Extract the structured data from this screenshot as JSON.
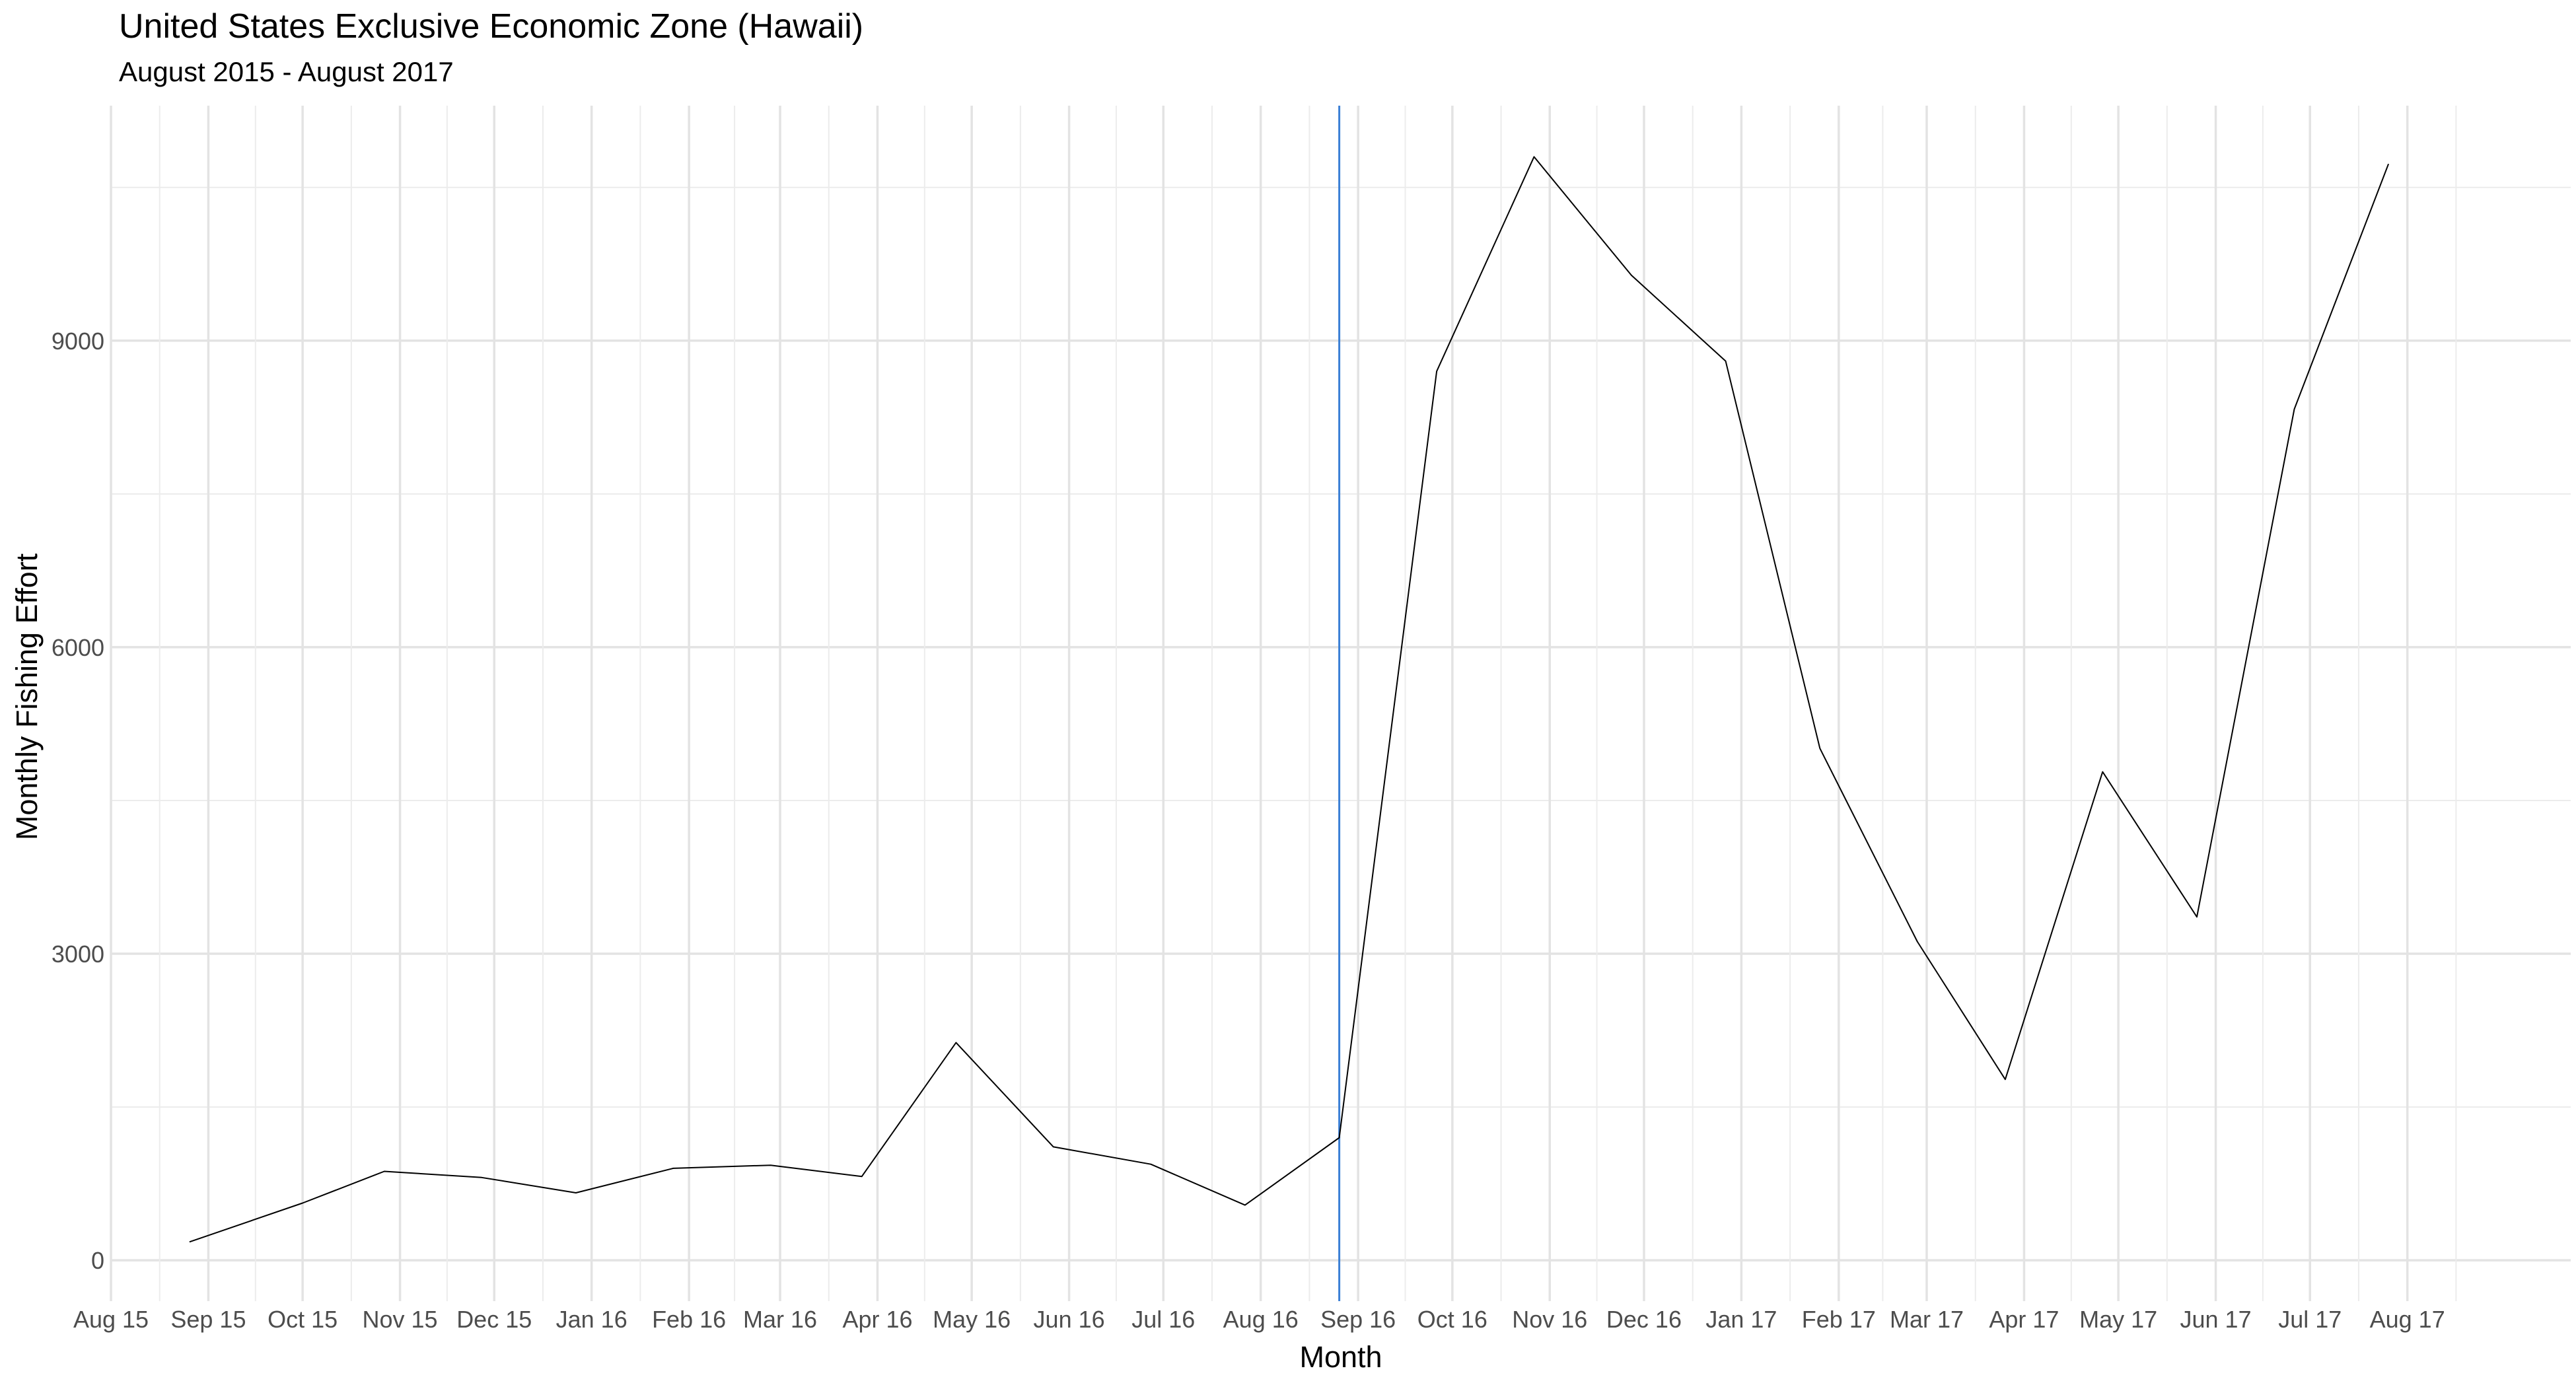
{
  "chart_data": {
    "type": "line",
    "title": "United States Exclusive Economic Zone (Hawaii)",
    "subtitle": "August 2015 - August 2017",
    "xlabel": "Month",
    "ylabel": "Monthly Fishing Effort",
    "x_range": [
      "2015-08-01",
      "2017-09-22"
    ],
    "ylim": [
      -400,
      11300
    ],
    "y_ticks": [
      0,
      3000,
      6000,
      9000
    ],
    "y_minor_ticks": [
      1500,
      4500,
      7500,
      10500
    ],
    "x_ticks": [
      {
        "date": "2015-08-01",
        "label": "Aug 15"
      },
      {
        "date": "2015-09-01",
        "label": "Sep 15"
      },
      {
        "date": "2015-10-01",
        "label": "Oct 15"
      },
      {
        "date": "2015-11-01",
        "label": "Nov 15"
      },
      {
        "date": "2015-12-01",
        "label": "Dec 15"
      },
      {
        "date": "2016-01-01",
        "label": "Jan 16"
      },
      {
        "date": "2016-02-01",
        "label": "Feb 16"
      },
      {
        "date": "2016-03-01",
        "label": "Mar 16"
      },
      {
        "date": "2016-04-01",
        "label": "Apr 16"
      },
      {
        "date": "2016-05-01",
        "label": "May 16"
      },
      {
        "date": "2016-06-01",
        "label": "Jun 16"
      },
      {
        "date": "2016-07-01",
        "label": "Jul 16"
      },
      {
        "date": "2016-08-01",
        "label": "Aug 16"
      },
      {
        "date": "2016-09-01",
        "label": "Sep 16"
      },
      {
        "date": "2016-10-01",
        "label": "Oct 16"
      },
      {
        "date": "2016-11-01",
        "label": "Nov 16"
      },
      {
        "date": "2016-12-01",
        "label": "Dec 16"
      },
      {
        "date": "2017-01-01",
        "label": "Jan 17"
      },
      {
        "date": "2017-02-01",
        "label": "Feb 17"
      },
      {
        "date": "2017-03-01",
        "label": "Mar 17"
      },
      {
        "date": "2017-04-01",
        "label": "Apr 17"
      },
      {
        "date": "2017-05-01",
        "label": "May 17"
      },
      {
        "date": "2017-06-01",
        "label": "Jun 17"
      },
      {
        "date": "2017-07-01",
        "label": "Jul 17"
      },
      {
        "date": "2017-08-01",
        "label": "Aug 17"
      }
    ],
    "series": [
      {
        "color": "#000000",
        "points": [
          {
            "date": "2015-08-26",
            "value": 180
          },
          {
            "date": "2015-10-01",
            "value": 560
          },
          {
            "date": "2015-10-27",
            "value": 870
          },
          {
            "date": "2015-11-27",
            "value": 810
          },
          {
            "date": "2015-12-27",
            "value": 660
          },
          {
            "date": "2016-01-27",
            "value": 900
          },
          {
            "date": "2016-02-27",
            "value": 930
          },
          {
            "date": "2016-03-27",
            "value": 820
          },
          {
            "date": "2016-04-26",
            "value": 2130
          },
          {
            "date": "2016-05-27",
            "value": 1110
          },
          {
            "date": "2016-06-27",
            "value": 940
          },
          {
            "date": "2016-07-27",
            "value": 540
          },
          {
            "date": "2016-08-26",
            "value": 1200
          },
          {
            "date": "2016-09-26",
            "value": 8700
          },
          {
            "date": "2016-10-27",
            "value": 10800
          },
          {
            "date": "2016-11-27",
            "value": 9640
          },
          {
            "date": "2016-12-27",
            "value": 8800
          },
          {
            "date": "2017-01-26",
            "value": 5010
          },
          {
            "date": "2017-02-26",
            "value": 3120
          },
          {
            "date": "2017-03-26",
            "value": 1770
          },
          {
            "date": "2017-04-26",
            "value": 4780
          },
          {
            "date": "2017-05-26",
            "value": 3360
          },
          {
            "date": "2017-06-26",
            "value": 8330
          },
          {
            "date": "2017-07-26",
            "value": 10730
          }
        ]
      }
    ],
    "vertical_line": {
      "date": "2016-08-26",
      "color": "#3a7fd5"
    },
    "grid": true,
    "legend": "none"
  }
}
